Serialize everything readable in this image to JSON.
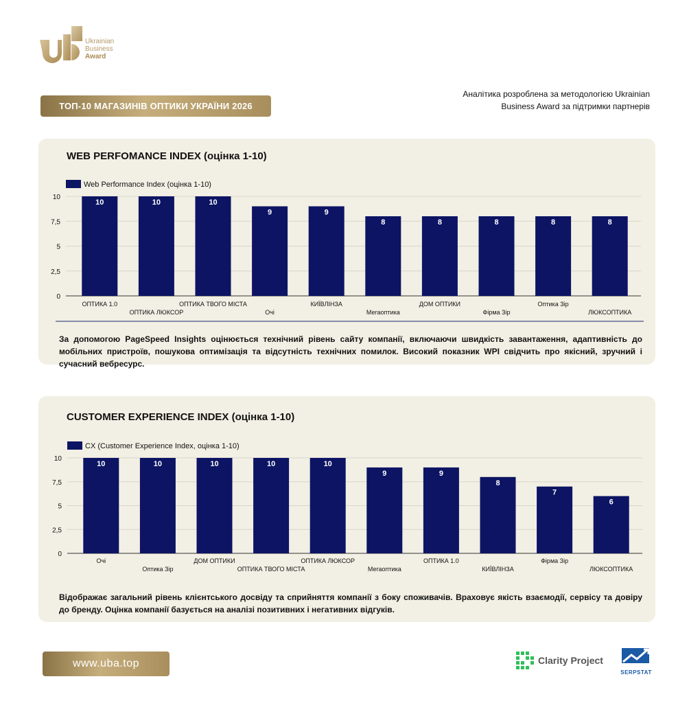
{
  "logo": {
    "line1": "Ukrainian",
    "line2": "Business",
    "line3": "Award"
  },
  "header": {
    "badge": "ТОП-10 МАГАЗИНІВ ОПТИКИ УКРАЇНИ 2026",
    "attribution_line1": "Аналітика розроблена за методологією Ukrainian",
    "attribution_line2": "Business Award за підтримки партнерів"
  },
  "colors": {
    "bar": "#0c1463",
    "gold": "#b9a06e",
    "panel": "#f2efe4"
  },
  "chart_data": [
    {
      "type": "bar",
      "title": "WEB PERFOMANCE INDEX (оцінка 1-10)",
      "categories": [
        "ОПТИКА 1.0",
        "ОПТИКА ЛЮКСОР",
        "ОПТИКА ТВОГО МІСТА",
        "Очі",
        "КИЇВЛІНЗА",
        "Мегаоптика",
        "ДОМ ОПТИКИ",
        "Фірма Зір",
        "Оптика Зір",
        "ЛЮКСОПТИКА"
      ],
      "series": [
        {
          "name": "Web Performance Index (оцінка 1-10)",
          "values": [
            10,
            10,
            10,
            9,
            9,
            8,
            8,
            8,
            8,
            8
          ]
        }
      ],
      "yticks": [
        "0",
        "2,5",
        "5",
        "7,5",
        "10"
      ],
      "ylim": [
        0,
        10
      ],
      "grid": true,
      "legend": "top-left"
    },
    {
      "type": "bar",
      "title": "CUSTOMER EXPERIENCE INDEX (оцінка 1-10)",
      "categories": [
        "Очі",
        "Оптика Зір",
        "ДОМ ОПТИКИ",
        "ОПТИКА ТВОГО МІСТА",
        "ОПТИКА ЛЮКСОР",
        "Мегаоптика",
        "ОПТИКА 1.0",
        "КИЇВЛІНЗА",
        "Фірма Зір",
        "ЛЮКСОПТИКА"
      ],
      "series": [
        {
          "name": "CX (Customer Experience Index, оцінка 1-10)",
          "values": [
            10,
            10,
            10,
            10,
            10,
            9,
            9,
            8,
            7,
            6
          ]
        }
      ],
      "yticks": [
        "0",
        "2,5",
        "5",
        "7,5",
        "10"
      ],
      "ylim": [
        0,
        10
      ],
      "grid": true,
      "legend": "top-left"
    }
  ],
  "descriptions": {
    "wpi": "За допомогою PageSpeed Insights оцінюється технічний рівень сайту компанії, включаючи швидкість завантаження, адаптивність до мобільних пристроїв, пошукова оптимізація та відсутність технічних помилок. Високий показник WPI свідчить про якісний, зручний і сучасний вебресурс.",
    "cx": "Відображає загальний рівень клієнтського досвіду та сприйняття компанії з боку споживачів. Враховує якість взаємодії, сервісу та довіру до бренду. Оцінка компанії базується на аналізі позитивних і негативних відгуків."
  },
  "footer": {
    "url": "www.uba.top",
    "partner1": "Clarity Project",
    "partner2": "SERPSTAT"
  }
}
